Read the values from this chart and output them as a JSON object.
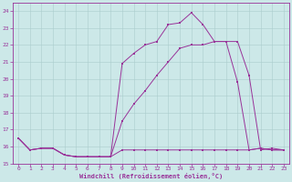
{
  "xlabel": "Windchill (Refroidissement éolien,°C)",
  "bg_color": "#cce8e8",
  "grid_color": "#aacccc",
  "line_color": "#993399",
  "xlim": [
    -0.5,
    23.5
  ],
  "ylim": [
    15.0,
    24.5
  ],
  "yticks": [
    15,
    16,
    17,
    18,
    19,
    20,
    21,
    22,
    23,
    24
  ],
  "xticks": [
    0,
    1,
    2,
    3,
    4,
    5,
    6,
    7,
    8,
    9,
    10,
    11,
    12,
    13,
    14,
    15,
    16,
    17,
    18,
    19,
    20,
    21,
    22,
    23
  ],
  "series": [
    {
      "x": [
        0,
        1,
        2,
        3,
        4,
        5,
        6,
        7,
        8,
        9,
        10,
        11,
        12,
        13,
        14,
        15,
        16,
        17,
        18,
        19,
        20,
        21,
        22,
        23
      ],
      "y": [
        16.5,
        15.8,
        15.9,
        15.9,
        15.5,
        15.4,
        15.4,
        15.4,
        15.4,
        20.9,
        21.5,
        22.0,
        22.2,
        23.2,
        23.3,
        23.9,
        23.2,
        22.2,
        22.2,
        22.2,
        20.2,
        15.8,
        15.9,
        15.8
      ]
    },
    {
      "x": [
        0,
        1,
        2,
        3,
        4,
        5,
        6,
        7,
        8,
        9,
        10,
        11,
        12,
        13,
        14,
        15,
        16,
        17,
        18,
        19,
        20,
        21,
        22,
        23
      ],
      "y": [
        16.5,
        15.8,
        15.9,
        15.9,
        15.5,
        15.4,
        15.4,
        15.4,
        15.4,
        17.5,
        18.5,
        19.3,
        20.2,
        21.0,
        21.8,
        22.0,
        22.0,
        22.2,
        22.2,
        19.8,
        15.8,
        15.9,
        15.8,
        15.8
      ]
    },
    {
      "x": [
        0,
        1,
        2,
        3,
        4,
        5,
        6,
        7,
        8,
        9,
        10,
        11,
        12,
        13,
        14,
        15,
        16,
        17,
        18,
        19,
        20,
        21,
        22,
        23
      ],
      "y": [
        16.5,
        15.8,
        15.9,
        15.9,
        15.5,
        15.4,
        15.4,
        15.4,
        15.4,
        15.8,
        15.8,
        15.8,
        15.8,
        15.8,
        15.8,
        15.8,
        15.8,
        15.8,
        15.8,
        15.8,
        15.8,
        15.9,
        15.8,
        15.8
      ]
    }
  ]
}
